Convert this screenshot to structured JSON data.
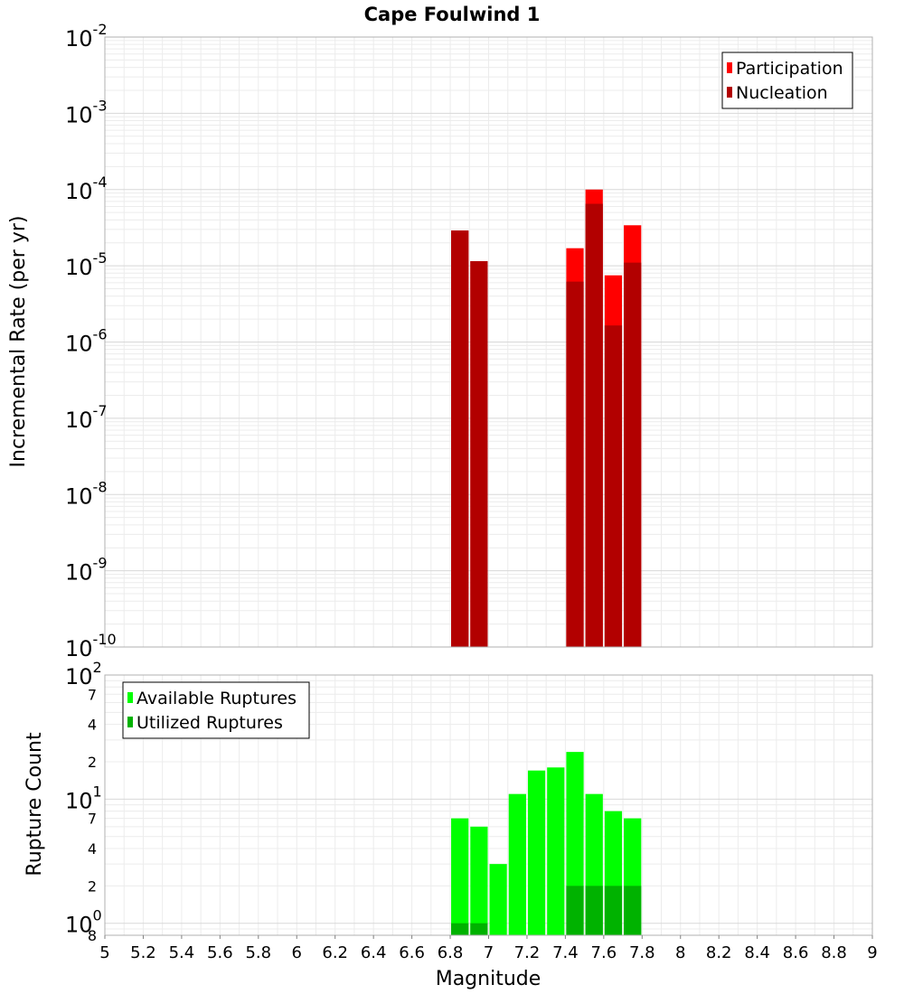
{
  "chart_data": [
    {
      "type": "bar",
      "title": "Cape Foulwind 1",
      "ylabel": "Incremental Rate (per yr)",
      "yscale": "log",
      "ylim": [
        1e-10,
        0.01
      ],
      "xlim": [
        5,
        9
      ],
      "legend_position": "top-right",
      "bar_width": 0.1,
      "series": [
        {
          "name": "Participation",
          "color": "#ff0000",
          "x": [
            6.85,
            6.95,
            7.45,
            7.55,
            7.65,
            7.75
          ],
          "values": [
            2.9e-05,
            1.15e-05,
            1.7e-05,
            0.0001,
            7.5e-06,
            3.4e-05
          ]
        },
        {
          "name": "Nucleation",
          "color": "#b20000",
          "x": [
            6.85,
            6.95,
            7.45,
            7.55,
            7.65,
            7.75
          ],
          "values": [
            2.9e-05,
            1.15e-05,
            6.2e-06,
            6.5e-05,
            1.65e-06,
            1.1e-05
          ]
        }
      ],
      "y_ticks": [
        {
          "base": "10",
          "exp": "-2"
        },
        {
          "base": "10",
          "exp": "-3"
        },
        {
          "base": "10",
          "exp": "-4"
        },
        {
          "base": "10",
          "exp": "-5"
        },
        {
          "base": "10",
          "exp": "-6"
        },
        {
          "base": "10",
          "exp": "-7"
        },
        {
          "base": "10",
          "exp": "-8"
        },
        {
          "base": "10",
          "exp": "-9"
        },
        {
          "base": "10",
          "exp": "-10"
        }
      ]
    },
    {
      "type": "bar",
      "xlabel": "Magnitude",
      "ylabel": "Rupture Count",
      "yscale": "log",
      "ylim": [
        0.8,
        100
      ],
      "xlim": [
        5,
        9
      ],
      "legend_position": "top-left",
      "bar_width": 0.1,
      "series": [
        {
          "name": "Available Ruptures",
          "color": "#00ff00",
          "x": [
            6.85,
            6.95,
            7.05,
            7.15,
            7.25,
            7.35,
            7.45,
            7.55,
            7.65,
            7.75
          ],
          "values": [
            7,
            6,
            3,
            11,
            17,
            18,
            24,
            11,
            8,
            7
          ]
        },
        {
          "name": "Utilized Ruptures",
          "color": "#00b200",
          "x": [
            6.85,
            6.95,
            7.45,
            7.55,
            7.65,
            7.75
          ],
          "values": [
            1,
            1,
            2,
            2,
            2,
            2
          ]
        }
      ],
      "y_major_ticks": [
        {
          "base": "10",
          "exp": "2"
        },
        {
          "base": "10",
          "exp": "1"
        },
        {
          "base": "10",
          "exp": "0"
        }
      ],
      "y_minor_labels": [
        "7",
        "4",
        "2",
        "7",
        "4",
        "2",
        "8"
      ],
      "x_ticks": [
        "5",
        "5.2",
        "5.4",
        "5.6",
        "5.8",
        "6",
        "6.2",
        "6.4",
        "6.6",
        "6.8",
        "7",
        "7.2",
        "7.4",
        "7.6",
        "7.8",
        "8",
        "8.2",
        "8.4",
        "8.6",
        "8.8",
        "9"
      ]
    }
  ]
}
